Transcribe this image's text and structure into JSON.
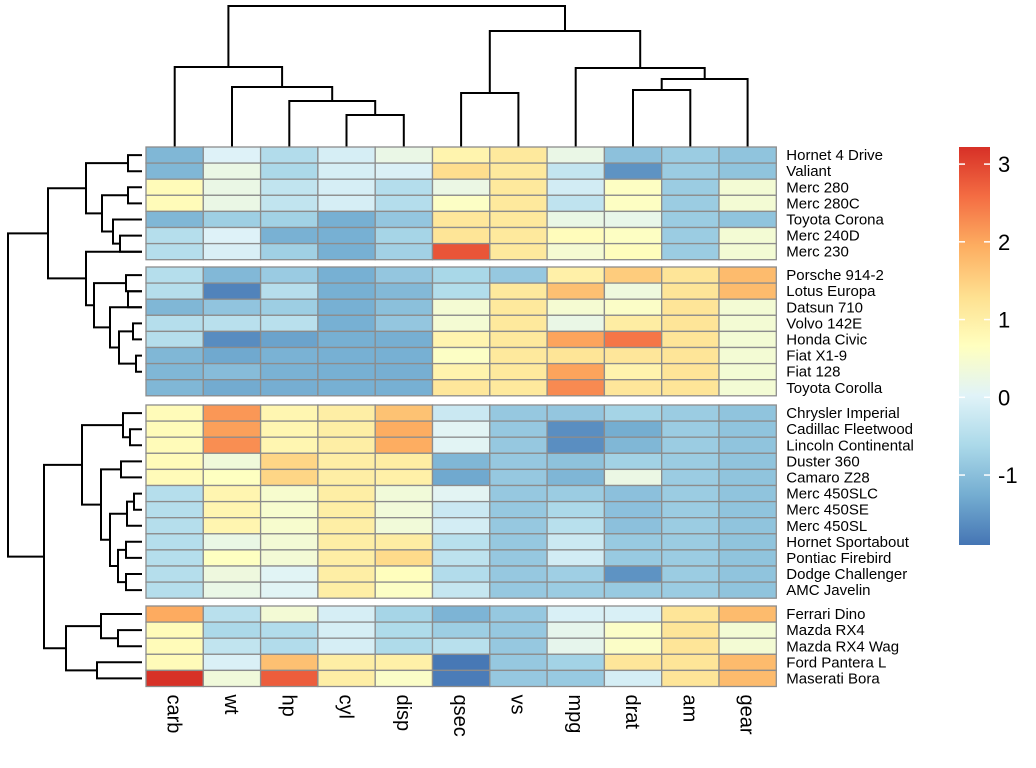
{
  "chart_data": {
    "type": "heatmap",
    "title": "",
    "columns": [
      "carb",
      "wt",
      "hp",
      "cyl",
      "disp",
      "qsec",
      "vs",
      "mpg",
      "drat",
      "am",
      "gear"
    ],
    "row_groups": [
      [
        "Hornet 4 Drive",
        "Valiant",
        "Merc 280",
        "Merc 280C",
        "Toyota Corona",
        "Merc 240D",
        "Merc 230"
      ],
      [
        "Porsche 914-2",
        "Lotus Europa",
        "Datsun 710",
        "Volvo 142E",
        "Honda Civic",
        "Fiat X1-9",
        "Fiat 128",
        "Toyota Corolla"
      ],
      [
        "Chrysler Imperial",
        "Cadillac Fleetwood",
        "Lincoln Continental",
        "Duster 360",
        "Camaro Z28",
        "Merc 450SLC",
        "Merc 450SE",
        "Merc 450SL",
        "Hornet Sportabout",
        "Pontiac Firebird",
        "Dodge Challenger",
        "AMC Javelin"
      ],
      [
        "Ferrari Dino",
        "Mazda RX4",
        "Mazda RX4 Wag",
        "Ford Pantera L",
        "Maserati Bora"
      ]
    ],
    "values": [
      [
        -1.12,
        -0.0,
        -0.54,
        -0.1,
        0.22,
        0.89,
        1.12,
        0.22,
        -0.97,
        -0.81,
        -0.93
      ],
      [
        -1.12,
        0.23,
        -0.61,
        -0.1,
        -0.05,
        1.33,
        1.12,
        -0.33,
        -1.56,
        -0.81,
        -0.93
      ],
      [
        0.74,
        0.23,
        -0.35,
        -0.1,
        -0.51,
        0.25,
        1.12,
        -0.15,
        0.61,
        -0.81,
        0.42
      ],
      [
        0.74,
        0.23,
        -0.35,
        -0.1,
        -0.51,
        0.59,
        1.12,
        -0.38,
        0.61,
        -0.81,
        0.42
      ],
      [
        -1.12,
        -0.77,
        -0.72,
        -1.22,
        -0.89,
        1.15,
        1.12,
        0.23,
        0.19,
        -0.81,
        -0.93
      ],
      [
        -0.5,
        -0.0,
        -1.2,
        -1.22,
        -0.68,
        1.2,
        1.12,
        0.72,
        0.61,
        -0.81,
        0.42
      ],
      [
        -0.5,
        -0.07,
        -0.75,
        -1.22,
        -0.73,
        2.83,
        1.12,
        0.45,
        0.7,
        -0.81,
        0.42
      ],
      [
        -0.5,
        -1.1,
        -0.82,
        -1.22,
        -0.89,
        -0.64,
        -0.87,
        0.98,
        1.56,
        1.19,
        1.78
      ],
      [
        -0.5,
        -1.74,
        -0.49,
        -1.22,
        -1.09,
        -0.53,
        1.12,
        1.71,
        0.32,
        1.19,
        1.78
      ],
      [
        -1.12,
        -0.92,
        -0.78,
        -1.22,
        -0.99,
        0.43,
        1.12,
        0.45,
        0.57,
        1.19,
        0.42
      ],
      [
        -0.5,
        -0.45,
        -0.45,
        -1.22,
        -0.89,
        0.43,
        1.12,
        0.22,
        1.04,
        1.19,
        0.42
      ],
      [
        -0.5,
        -1.64,
        -1.38,
        -1.22,
        -1.23,
        0.88,
        1.12,
        2.04,
        2.49,
        1.19,
        0.42
      ],
      [
        -1.12,
        -1.31,
        -1.19,
        -1.22,
        -1.22,
        0.59,
        1.12,
        1.2,
        1.17,
        1.19,
        0.42
      ],
      [
        -1.12,
        -1.04,
        -1.19,
        -1.22,
        -1.23,
        0.91,
        1.12,
        2.04,
        0.91,
        1.19,
        0.42
      ],
      [
        -1.12,
        -1.28,
        -1.24,
        -1.22,
        -1.22,
        1.15,
        1.12,
        2.29,
        1.17,
        1.19,
        0.42
      ],
      [
        0.74,
        2.17,
        0.85,
        1.01,
        1.69,
        -0.25,
        -0.87,
        -0.89,
        -0.69,
        -0.81,
        -0.93
      ],
      [
        0.74,
        2.08,
        0.85,
        1.01,
        1.95,
        0.07,
        -0.87,
        -1.61,
        -1.25,
        -0.81,
        -0.93
      ],
      [
        0.74,
        2.26,
        0.85,
        1.01,
        1.95,
        0.07,
        -0.87,
        -1.61,
        -1.12,
        -0.81,
        -0.93
      ],
      [
        0.74,
        0.36,
        1.43,
        1.01,
        1.04,
        -1.12,
        -0.87,
        -0.96,
        -0.72,
        -0.81,
        -0.93
      ],
      [
        0.74,
        0.64,
        1.43,
        1.01,
        0.97,
        -1.31,
        -0.87,
        -1.13,
        0.24,
        -0.81,
        -0.93
      ],
      [
        -0.5,
        0.87,
        0.49,
        1.01,
        0.37,
        0.08,
        -0.87,
        -0.81,
        -0.98,
        -0.81,
        -0.93
      ],
      [
        -0.5,
        0.87,
        0.49,
        1.01,
        0.37,
        -0.25,
        -0.87,
        -0.61,
        -0.98,
        -0.81,
        -0.93
      ],
      [
        -0.5,
        0.87,
        0.49,
        1.01,
        0.37,
        -0.14,
        -0.87,
        -0.46,
        -0.98,
        -0.81,
        -0.93
      ],
      [
        -0.5,
        0.23,
        0.41,
        1.01,
        1.04,
        -0.46,
        -0.87,
        -0.23,
        -0.84,
        -0.81,
        -0.93
      ],
      [
        -0.5,
        0.64,
        0.41,
        1.01,
        1.37,
        -0.4,
        -0.87,
        -0.15,
        -0.84,
        -0.81,
        -0.93
      ],
      [
        -0.5,
        0.31,
        0.05,
        1.01,
        0.69,
        -0.54,
        -0.87,
        -0.76,
        -1.56,
        -0.81,
        -0.93
      ],
      [
        -0.5,
        0.22,
        0.05,
        1.01,
        0.59,
        -0.31,
        -0.87,
        -0.81,
        -0.84,
        -0.81,
        -0.93
      ],
      [
        1.97,
        -0.45,
        0.41,
        -0.1,
        -0.68,
        -1.16,
        -0.87,
        -0.06,
        -0.06,
        1.19,
        1.78
      ],
      [
        0.74,
        -0.61,
        -0.54,
        -0.1,
        -0.57,
        -0.78,
        -0.87,
        0.15,
        0.57,
        1.19,
        0.42
      ],
      [
        0.74,
        -0.35,
        -0.54,
        -0.1,
        -0.57,
        -0.46,
        -0.87,
        0.15,
        0.57,
        1.19,
        0.42
      ],
      [
        0.74,
        -0.05,
        1.71,
        1.01,
        0.97,
        -1.87,
        -0.87,
        -0.71,
        1.17,
        1.19,
        1.78
      ],
      [
        3.21,
        0.36,
        2.75,
        1.01,
        0.57,
        -1.82,
        -0.87,
        -0.84,
        -0.11,
        1.19,
        1.78
      ]
    ],
    "legend": {
      "ticks": [
        3,
        2,
        1,
        0,
        -1
      ],
      "tick_labels": [
        "3",
        "2",
        "1",
        "0",
        "-1"
      ],
      "range": [
        -1.9,
        3.22
      ],
      "placement": "right"
    },
    "colors": {
      "palette": [
        "#4575B4",
        "#74ADD1",
        "#ABD9E9",
        "#E0F3F8",
        "#FFFFBF",
        "#FEE090",
        "#FDAE61",
        "#F46D43",
        "#D73027"
      ],
      "cell_border": "#8c8c8c",
      "dendrogram": "#000000"
    }
  }
}
